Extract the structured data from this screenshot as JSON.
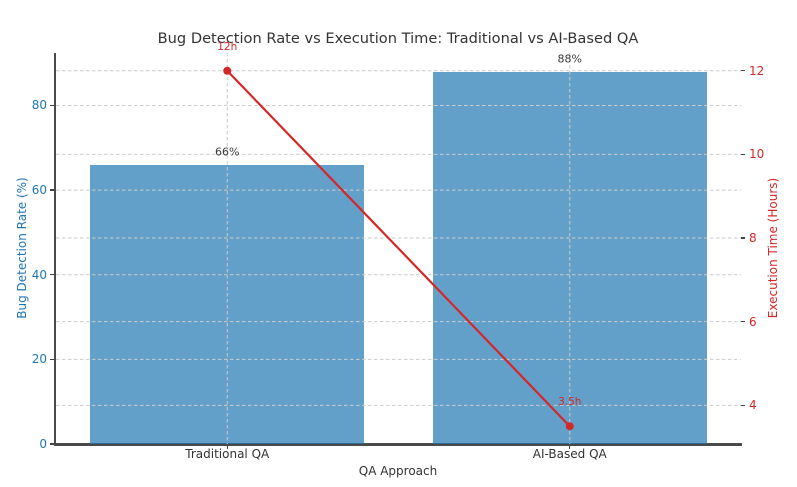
{
  "chart_data": {
    "type": "bar+line-dual-axis",
    "title": "Bug Detection Rate vs Execution Time: Traditional vs AI-Based QA",
    "xlabel": "QA Approach",
    "categories": [
      "Traditional QA",
      "AI-Based QA"
    ],
    "series": [
      {
        "name": "Bug Detection Rate",
        "type": "bar",
        "axis": "left",
        "values": [
          66,
          88
        ],
        "point_labels": [
          "66%",
          "88%"
        ],
        "color": "#1f77b4",
        "bar_fill": "rgba(31,119,180,0.7)",
        "bar_width_fraction": 0.8
      },
      {
        "name": "Execution Time",
        "type": "line",
        "axis": "right",
        "values": [
          12,
          3.5
        ],
        "point_labels": [
          "12h",
          "3.5h"
        ],
        "color": "#d62728",
        "marker": "circle"
      }
    ],
    "left_axis": {
      "label": "Bug Detection Rate (%)",
      "ticks": [
        0,
        20,
        40,
        60,
        80
      ],
      "min": 0,
      "max": 92.4,
      "color": "#1f77b4"
    },
    "right_axis": {
      "label": "Execution Time (Hours)",
      "ticks": [
        4,
        6,
        8,
        10,
        12
      ],
      "min": 3.075,
      "max": 12.425,
      "color": "#d62728"
    },
    "grid": {
      "horizontal": true,
      "vertical_at_categories": true,
      "style": "dashed",
      "color": "#cbcbcb"
    },
    "legend": "none",
    "annotation_color": "#3a3a3a"
  }
}
